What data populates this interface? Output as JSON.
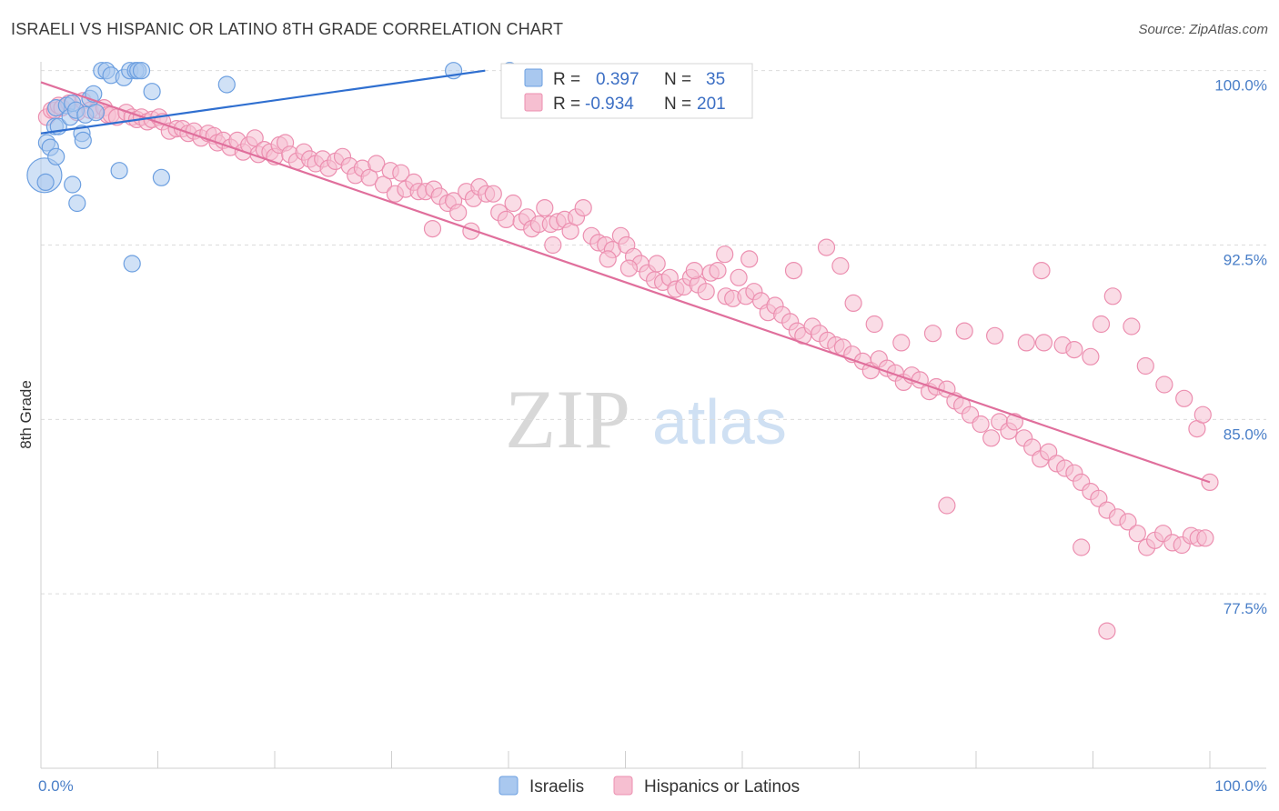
{
  "title": "ISRAELI VS HISPANIC OR LATINO 8TH GRADE CORRELATION CHART",
  "source": "Source: ZipAtlas.com",
  "watermark": {
    "zip": "ZIP",
    "atlas": "atlas"
  },
  "colors": {
    "blue_fill": "#a9c8ef",
    "blue_stroke": "#6c9fe0",
    "blue_line": "#2f6fd0",
    "pink_fill": "#f6bfd1",
    "pink_stroke": "#ec8fb0",
    "pink_line": "#e06f9c",
    "grid": "#dcdcdc",
    "axis_text": "#4a7fc8"
  },
  "legend": {
    "r_label": "R =",
    "n_label": "N =",
    "series": [
      {
        "name": "Israelis",
        "r": "0.397",
        "n": "35"
      },
      {
        "name": "Hispanics or Latinos",
        "r": "-0.934",
        "n": "201"
      }
    ]
  },
  "chart_data": {
    "type": "scatter",
    "title": "ISRAELI VS HISPANIC OR LATINO 8TH GRADE CORRELATION CHART",
    "xlabel": "",
    "ylabel": "8th Grade",
    "xlim": [
      0,
      100
    ],
    "ylim": [
      70.0,
      100.3
    ],
    "x_tick_labels": [
      "0.0%",
      "100.0%"
    ],
    "y_ticks": [
      77.5,
      85.0,
      92.5,
      100.0
    ],
    "y_tick_labels": [
      "77.5%",
      "85.0%",
      "92.5%",
      "100.0%"
    ],
    "series": [
      {
        "name": "Israelis",
        "trend": {
          "x": [
            0,
            38
          ],
          "y": [
            97.3,
            100.0
          ]
        },
        "points": [
          [
            0.3,
            95.5,
            3
          ],
          [
            0.4,
            95.2,
            1
          ],
          [
            0.5,
            96.9,
            1
          ],
          [
            0.8,
            96.7,
            1
          ],
          [
            1.2,
            97.6,
            1
          ],
          [
            1.3,
            98.4,
            1
          ],
          [
            1.5,
            97.6,
            1
          ],
          [
            2.2,
            98.5,
            1
          ],
          [
            2.5,
            98.0,
            1
          ],
          [
            2.7,
            98.6,
            1
          ],
          [
            3.0,
            98.3,
            1
          ],
          [
            3.5,
            97.3,
            1
          ],
          [
            3.6,
            97.0,
            1
          ],
          [
            3.8,
            98.1,
            1
          ],
          [
            4.2,
            98.8,
            1
          ],
          [
            4.5,
            99.0,
            1
          ],
          [
            4.7,
            98.2,
            1
          ],
          [
            5.2,
            100.0,
            1
          ],
          [
            5.6,
            100.0,
            1
          ],
          [
            6.0,
            99.8,
            1
          ],
          [
            7.1,
            99.7,
            1
          ],
          [
            7.6,
            100.0,
            1
          ],
          [
            8.1,
            100.0,
            1
          ],
          [
            8.3,
            100.0,
            1
          ],
          [
            8.6,
            100.0,
            1
          ],
          [
            9.5,
            99.1,
            1
          ],
          [
            1.3,
            96.3,
            1
          ],
          [
            2.7,
            95.1,
            1
          ],
          [
            3.1,
            94.3,
            1
          ],
          [
            6.7,
            95.7,
            1
          ],
          [
            7.8,
            91.7,
            1
          ],
          [
            10.3,
            95.4,
            1
          ],
          [
            15.9,
            99.4,
            1
          ],
          [
            35.3,
            100.0,
            1
          ],
          [
            40.1,
            100.0,
            1
          ]
        ]
      },
      {
        "name": "Hispanics or Latinos",
        "trend": {
          "x": [
            0,
            100
          ],
          "y": [
            99.5,
            82.3
          ]
        },
        "points": [
          [
            0.5,
            98.0,
            1
          ],
          [
            0.9,
            98.3,
            1
          ],
          [
            1.2,
            98.3,
            1
          ],
          [
            1.5,
            98.5,
            1
          ],
          [
            1.8,
            98.4,
            1
          ],
          [
            2.4,
            98.6,
            1
          ],
          [
            3.1,
            98.2,
            1
          ],
          [
            3.6,
            98.7,
            1
          ],
          [
            4.2,
            98.3,
            1
          ],
          [
            4.8,
            98.3,
            1
          ],
          [
            5.4,
            98.4,
            1
          ],
          [
            5.7,
            98.1,
            1
          ],
          [
            6.0,
            98.1,
            1
          ],
          [
            6.5,
            98.0,
            1
          ],
          [
            7.3,
            98.2,
            1
          ],
          [
            7.8,
            98.0,
            1
          ],
          [
            8.2,
            97.9,
            1
          ],
          [
            8.6,
            98.0,
            1
          ],
          [
            9.1,
            97.8,
            1
          ],
          [
            9.5,
            97.9,
            1
          ],
          [
            10.1,
            98.0,
            1
          ],
          [
            10.4,
            97.8,
            1
          ],
          [
            11.0,
            97.4,
            1
          ],
          [
            11.6,
            97.5,
            1
          ],
          [
            12.1,
            97.5,
            1
          ],
          [
            12.6,
            97.3,
            1
          ],
          [
            13.1,
            97.4,
            1
          ],
          [
            13.7,
            97.1,
            1
          ],
          [
            14.3,
            97.3,
            1
          ],
          [
            14.8,
            97.2,
            1
          ],
          [
            15.1,
            96.9,
            1
          ],
          [
            15.6,
            97.0,
            1
          ],
          [
            16.2,
            96.7,
            1
          ],
          [
            16.8,
            97.0,
            1
          ],
          [
            17.3,
            96.5,
            1
          ],
          [
            17.8,
            96.8,
            1
          ],
          [
            18.3,
            97.1,
            1
          ],
          [
            18.6,
            96.4,
            1
          ],
          [
            19.1,
            96.6,
            1
          ],
          [
            19.6,
            96.5,
            1
          ],
          [
            20.0,
            96.3,
            1
          ],
          [
            20.4,
            96.8,
            1
          ],
          [
            20.9,
            96.9,
            1
          ],
          [
            21.3,
            96.4,
            1
          ],
          [
            21.9,
            96.1,
            1
          ],
          [
            22.5,
            96.5,
            1
          ],
          [
            23.0,
            96.2,
            1
          ],
          [
            23.5,
            96.0,
            1
          ],
          [
            24.1,
            96.2,
            1
          ],
          [
            24.6,
            95.8,
            1
          ],
          [
            25.2,
            96.1,
            1
          ],
          [
            25.8,
            96.3,
            1
          ],
          [
            26.4,
            95.9,
            1
          ],
          [
            26.9,
            95.5,
            1
          ],
          [
            27.5,
            95.8,
            1
          ],
          [
            28.1,
            95.4,
            1
          ],
          [
            28.7,
            96.0,
            1
          ],
          [
            29.3,
            95.1,
            1
          ],
          [
            29.9,
            95.7,
            1
          ],
          [
            30.3,
            94.7,
            1
          ],
          [
            30.8,
            95.6,
            1
          ],
          [
            31.2,
            94.9,
            1
          ],
          [
            31.9,
            95.2,
            1
          ],
          [
            32.3,
            94.8,
            1
          ],
          [
            32.9,
            94.8,
            1
          ],
          [
            33.6,
            94.9,
            1
          ],
          [
            34.1,
            94.6,
            1
          ],
          [
            34.8,
            94.3,
            1
          ],
          [
            35.3,
            94.4,
            1
          ],
          [
            35.7,
            93.9,
            1
          ],
          [
            36.4,
            94.8,
            1
          ],
          [
            37.0,
            94.5,
            1
          ],
          [
            37.5,
            95.0,
            1
          ],
          [
            38.1,
            94.7,
            1
          ],
          [
            38.7,
            94.7,
            1
          ],
          [
            39.2,
            93.9,
            1
          ],
          [
            39.8,
            93.6,
            1
          ],
          [
            40.4,
            94.3,
            1
          ],
          [
            41.1,
            93.5,
            1
          ],
          [
            41.6,
            93.7,
            1
          ],
          [
            42.0,
            93.2,
            1
          ],
          [
            42.6,
            93.4,
            1
          ],
          [
            43.1,
            94.1,
            1
          ],
          [
            43.6,
            93.4,
            1
          ],
          [
            44.2,
            93.5,
            1
          ],
          [
            44.8,
            93.6,
            1
          ],
          [
            45.3,
            93.1,
            1
          ],
          [
            45.8,
            93.7,
            1
          ],
          [
            46.4,
            94.1,
            1
          ],
          [
            47.1,
            92.9,
            1
          ],
          [
            47.7,
            92.6,
            1
          ],
          [
            48.3,
            92.5,
            1
          ],
          [
            48.9,
            92.3,
            1
          ],
          [
            49.6,
            92.9,
            1
          ],
          [
            50.1,
            92.5,
            1
          ],
          [
            50.7,
            92.0,
            1
          ],
          [
            51.3,
            91.7,
            1
          ],
          [
            51.9,
            91.3,
            1
          ],
          [
            52.5,
            91.0,
            1
          ],
          [
            53.2,
            90.9,
            1
          ],
          [
            53.8,
            91.1,
            1
          ],
          [
            54.3,
            90.6,
            1
          ],
          [
            55.0,
            90.7,
            1
          ],
          [
            55.6,
            91.1,
            1
          ],
          [
            56.2,
            90.8,
            1
          ],
          [
            56.9,
            90.5,
            1
          ],
          [
            57.3,
            91.3,
            1
          ],
          [
            57.9,
            91.4,
            1
          ],
          [
            58.6,
            90.3,
            1
          ],
          [
            59.2,
            90.2,
            1
          ],
          [
            59.7,
            91.1,
            1
          ],
          [
            60.3,
            90.3,
            1
          ],
          [
            61.0,
            90.5,
            1
          ],
          [
            61.6,
            90.1,
            1
          ],
          [
            62.2,
            89.6,
            1
          ],
          [
            62.8,
            89.9,
            1
          ],
          [
            63.4,
            89.5,
            1
          ],
          [
            64.1,
            89.2,
            1
          ],
          [
            64.7,
            88.8,
            1
          ],
          [
            65.2,
            88.6,
            1
          ],
          [
            66.0,
            89.0,
            1
          ],
          [
            66.6,
            88.7,
            1
          ],
          [
            67.3,
            88.4,
            1
          ],
          [
            68.0,
            88.2,
            1
          ],
          [
            68.6,
            88.1,
            1
          ],
          [
            69.4,
            87.8,
            1
          ],
          [
            70.3,
            87.5,
            1
          ],
          [
            71.0,
            87.1,
            1
          ],
          [
            71.7,
            87.6,
            1
          ],
          [
            72.4,
            87.2,
            1
          ],
          [
            73.1,
            87.0,
            1
          ],
          [
            73.8,
            86.6,
            1
          ],
          [
            74.5,
            86.9,
            1
          ],
          [
            75.2,
            86.7,
            1
          ],
          [
            76.0,
            86.2,
            1
          ],
          [
            76.6,
            86.4,
            1
          ],
          [
            77.5,
            86.3,
            1
          ],
          [
            78.2,
            85.8,
            1
          ],
          [
            78.8,
            85.6,
            1
          ],
          [
            79.5,
            85.2,
            1
          ],
          [
            80.4,
            84.8,
            1
          ],
          [
            81.3,
            84.2,
            1
          ],
          [
            82.0,
            84.9,
            1
          ],
          [
            82.8,
            84.5,
            1
          ],
          [
            83.3,
            84.9,
            1
          ],
          [
            84.1,
            84.2,
            1
          ],
          [
            84.8,
            83.8,
            1
          ],
          [
            85.5,
            83.3,
            1
          ],
          [
            86.2,
            83.6,
            1
          ],
          [
            86.9,
            83.1,
            1
          ],
          [
            87.6,
            82.9,
            1
          ],
          [
            88.4,
            82.7,
            1
          ],
          [
            89.0,
            82.3,
            1
          ],
          [
            89.8,
            81.9,
            1
          ],
          [
            90.5,
            81.6,
            1
          ],
          [
            91.2,
            81.1,
            1
          ],
          [
            92.1,
            80.8,
            1
          ],
          [
            93.0,
            80.6,
            1
          ],
          [
            93.8,
            80.1,
            1
          ],
          [
            94.6,
            79.5,
            1
          ],
          [
            95.3,
            79.8,
            1
          ],
          [
            96.0,
            80.1,
            1
          ],
          [
            96.8,
            79.7,
            1
          ],
          [
            97.6,
            79.6,
            1
          ],
          [
            98.4,
            80.0,
            1
          ],
          [
            99.0,
            79.9,
            1
          ],
          [
            99.6,
            79.9,
            1
          ],
          [
            33.5,
            93.2,
            1
          ],
          [
            36.8,
            93.1,
            1
          ],
          [
            43.8,
            92.5,
            1
          ],
          [
            48.5,
            91.9,
            1
          ],
          [
            50.3,
            91.5,
            1
          ],
          [
            52.7,
            91.7,
            1
          ],
          [
            55.9,
            91.4,
            1
          ],
          [
            58.5,
            92.1,
            1
          ],
          [
            60.6,
            91.9,
            1
          ],
          [
            64.4,
            91.4,
            1
          ],
          [
            67.2,
            92.4,
            1
          ],
          [
            68.4,
            91.6,
            1
          ],
          [
            69.5,
            90.0,
            1
          ],
          [
            71.3,
            89.1,
            1
          ],
          [
            73.6,
            88.3,
            1
          ],
          [
            76.3,
            88.7,
            1
          ],
          [
            79.0,
            88.8,
            1
          ],
          [
            81.6,
            88.6,
            1
          ],
          [
            84.3,
            88.3,
            1
          ],
          [
            85.8,
            88.3,
            1
          ],
          [
            87.4,
            88.2,
            1
          ],
          [
            88.4,
            88.0,
            1
          ],
          [
            89.8,
            87.7,
            1
          ],
          [
            90.7,
            89.1,
            1
          ],
          [
            91.7,
            90.3,
            1
          ],
          [
            93.3,
            89.0,
            1
          ],
          [
            94.5,
            87.3,
            1
          ],
          [
            96.1,
            86.5,
            1
          ],
          [
            97.8,
            85.9,
            1
          ],
          [
            98.9,
            84.6,
            1
          ],
          [
            99.4,
            85.2,
            1
          ],
          [
            77.5,
            81.3,
            1
          ],
          [
            89.0,
            79.5,
            1
          ],
          [
            91.2,
            75.9,
            1
          ],
          [
            85.6,
            91.4,
            1
          ],
          [
            100.0,
            82.3,
            1
          ]
        ]
      }
    ]
  }
}
